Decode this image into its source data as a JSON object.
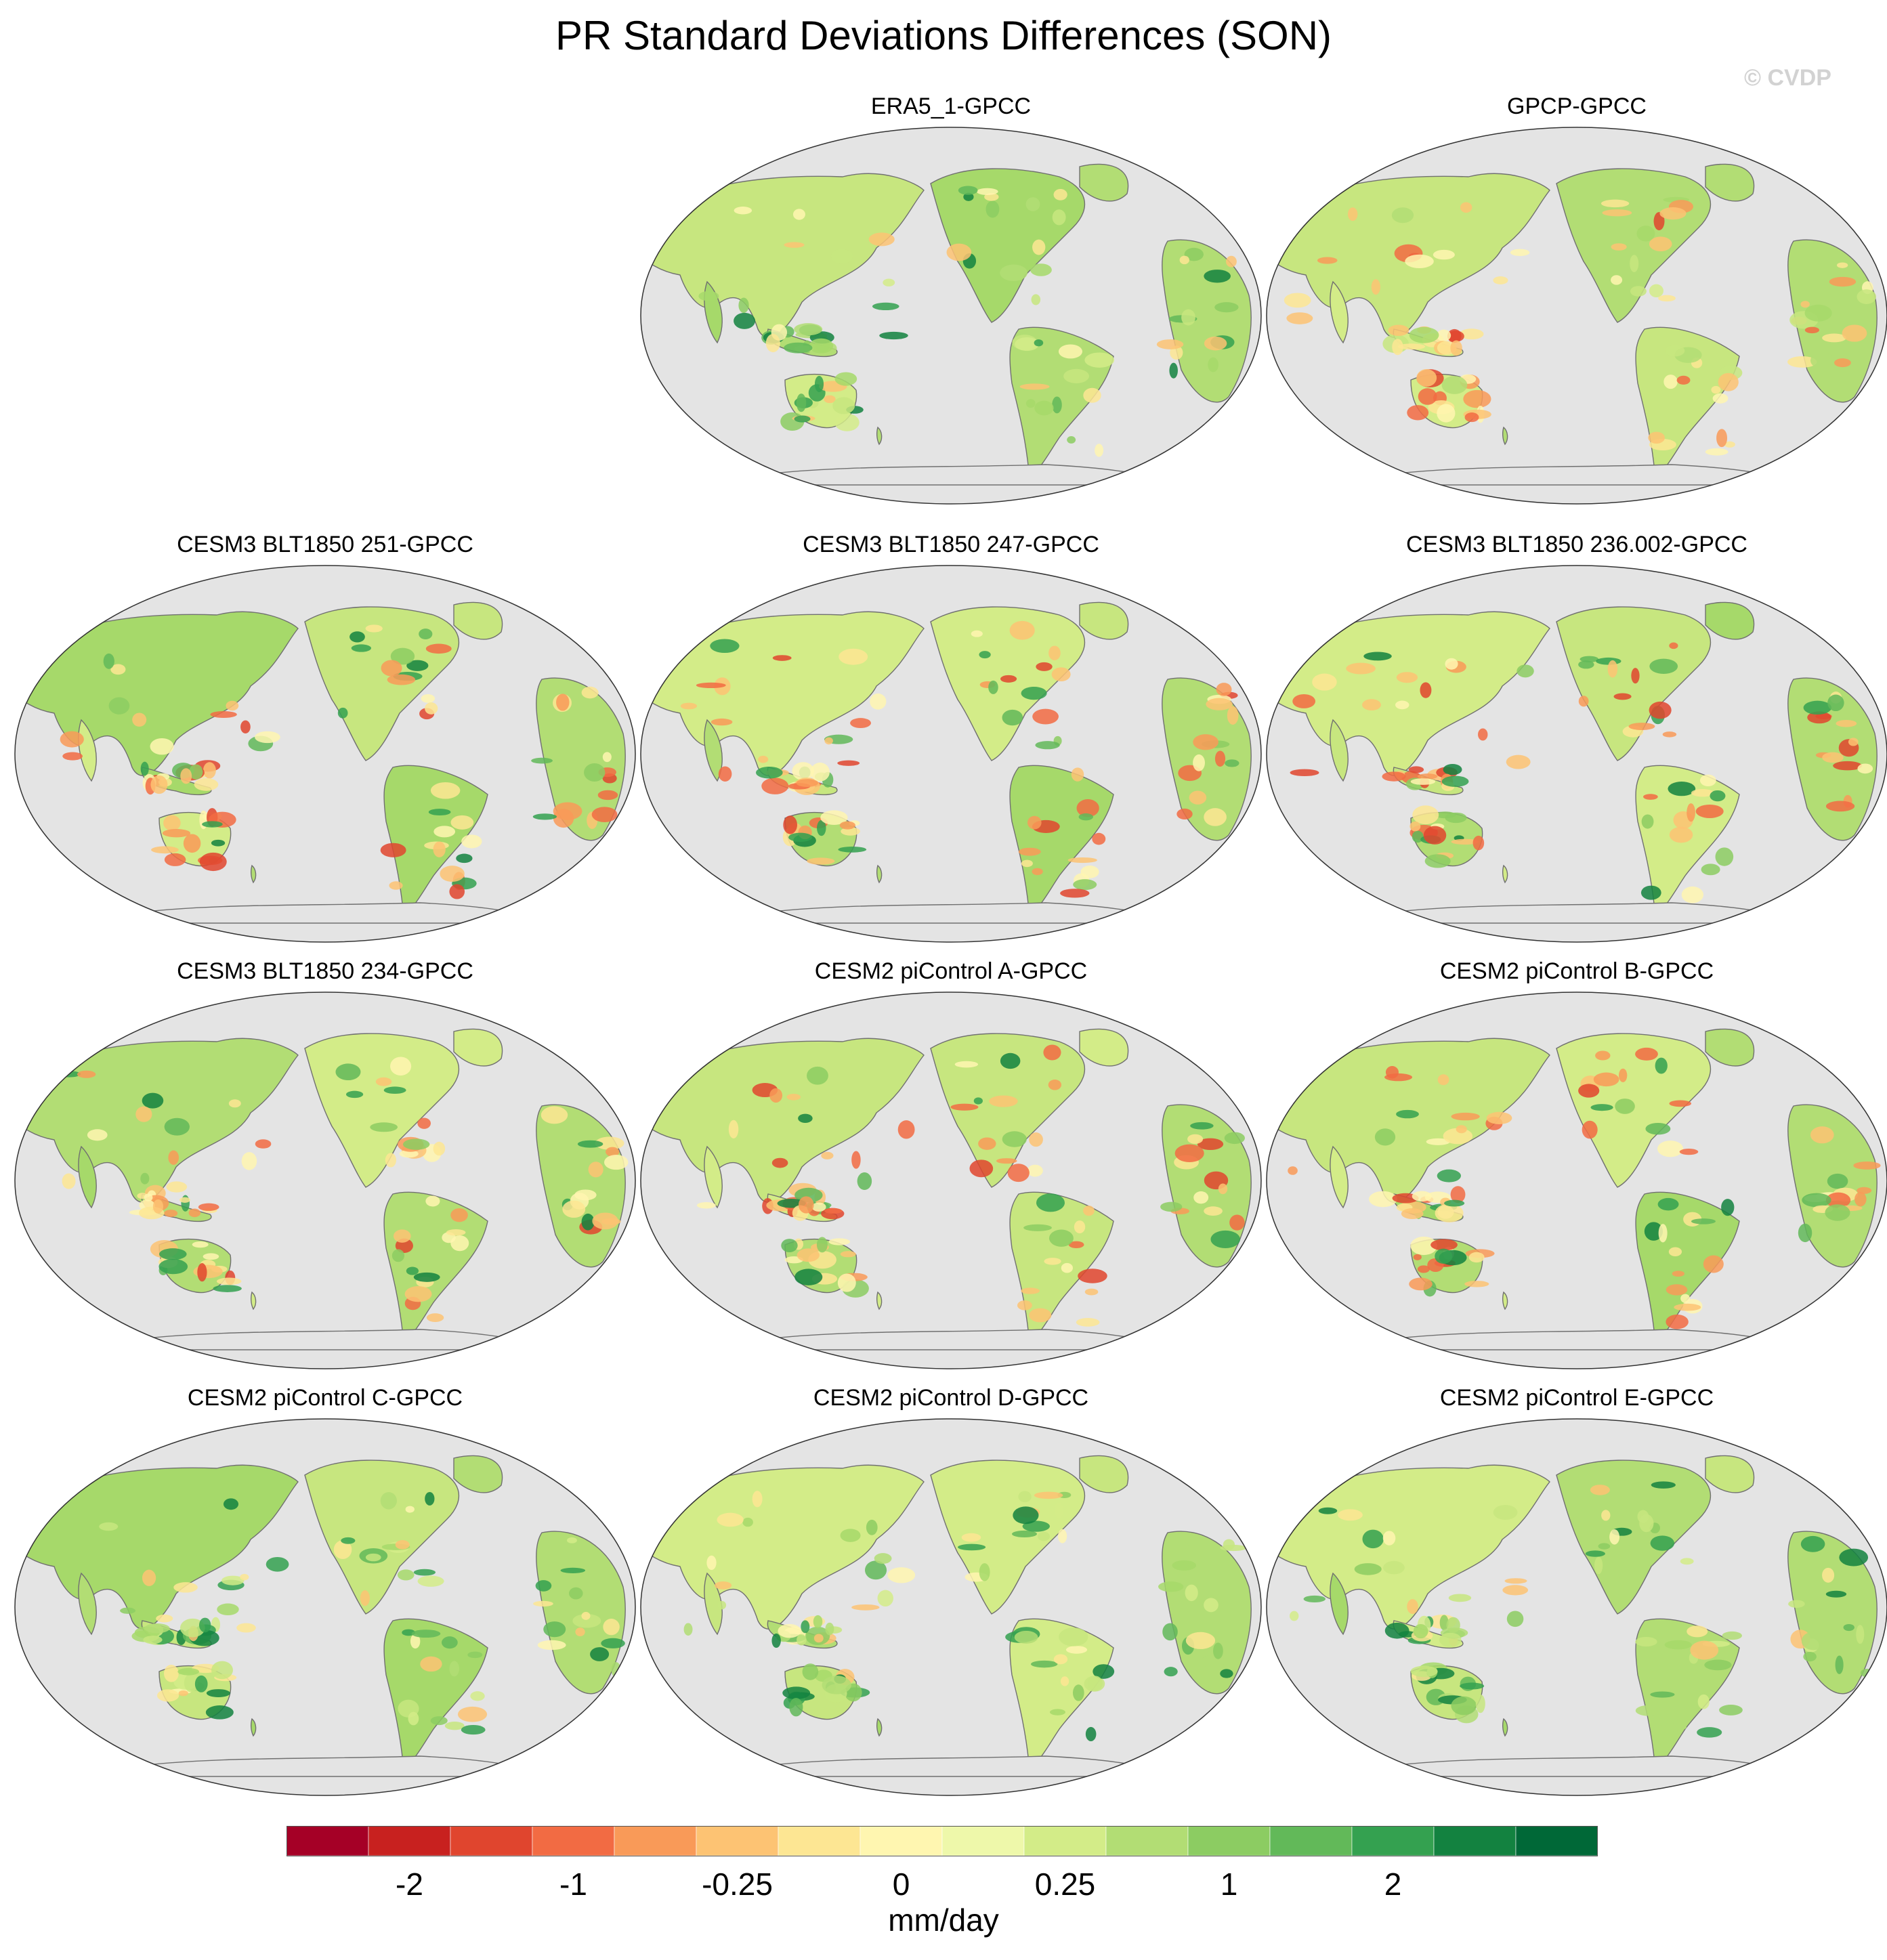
{
  "title": "PR Standard Deviations Differences (SON)",
  "watermark": "© CVDP",
  "panels": [
    {
      "title": "ERA5_1-GPCC",
      "tone": "green"
    },
    {
      "title": "GPCP-GPCC",
      "tone": "yellow"
    },
    {
      "title": "CESM3 BLT1850 251-GPCC",
      "tone": "mixed"
    },
    {
      "title": "CESM3 BLT1850 247-GPCC",
      "tone": "mixed"
    },
    {
      "title": "CESM3 BLT1850 236.002-GPCC",
      "tone": "mixed"
    },
    {
      "title": "CESM3 BLT1850 234-GPCC",
      "tone": "mixed"
    },
    {
      "title": "CESM2 piControl A-GPCC",
      "tone": "mixed"
    },
    {
      "title": "CESM2 piControl B-GPCC",
      "tone": "mixed"
    },
    {
      "title": "CESM2 piControl C-GPCC",
      "tone": "green"
    },
    {
      "title": "CESM2 piControl D-GPCC",
      "tone": "green"
    },
    {
      "title": "CESM2 piControl E-GPCC",
      "tone": "green"
    }
  ],
  "colorbar": {
    "colors": [
      "#a50026",
      "#c8211f",
      "#e0452e",
      "#f26b43",
      "#f99a58",
      "#fdc373",
      "#fde693",
      "#fff6b0",
      "#eef8aa",
      "#d3ec88",
      "#b2dd74",
      "#8ccc62",
      "#62b959",
      "#34a150",
      "#138240",
      "#006837"
    ],
    "labels": [
      "-2",
      "-1",
      "-0.25",
      "0",
      "0.25",
      "1",
      "2"
    ],
    "label_boundaries": [
      2,
      4,
      6,
      8,
      10,
      12,
      14
    ],
    "units": "mm/day"
  }
}
